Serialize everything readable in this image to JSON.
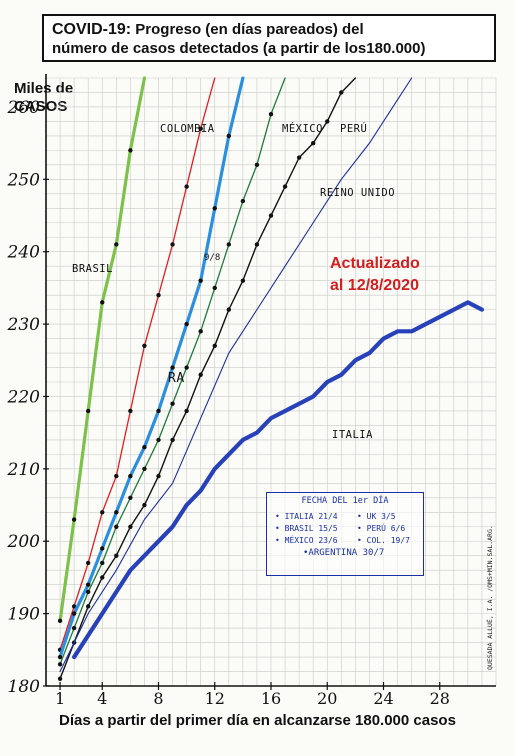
{
  "header": {
    "title_lead": "COVID-19:",
    "title_rest": " Progreso (en días pareados) del",
    "title_line2": "número de casos detectados (a partir de los180.000)"
  },
  "y_axis_label": [
    "Miles de",
    "CASOS"
  ],
  "x_axis_label": "Días a partir del primer día en alcanzarse 180.000 casos",
  "updated_note": [
    "Actualizado",
    "al 12/8/2020"
  ],
  "annotation_9_8": "9/8",
  "legend": {
    "header": "FECHA DEL 1er DÍA",
    "entries": [
      "• ITALIA 21/4",
      "• UK 3/5",
      "• BRASIL 15/5",
      "• PERÚ 6/6",
      "• MÉXICO 23/6",
      "• COL. 19/7"
    ],
    "last": "•ARGENTINA 30/7"
  },
  "credit": "QUESADA ALLUÉ, I.A. /OMS+MIN.SAL.ARG.",
  "colors": {
    "brasil": "#7cc24a",
    "colombia": "#e02020",
    "argentina": "#2a8fe0",
    "mexico": "#1f7a3a",
    "peru": "#111111",
    "reino_unido": "#1b2f9e",
    "italia": "#2741b8",
    "grid": "#c9c9c9",
    "updated": "#d21f1f"
  },
  "chart_data": {
    "type": "line",
    "xlabel": "Días a partir del primer día en alcanzarse 180.000 casos",
    "ylabel": "Miles de CASOS",
    "x_ticks": [
      1,
      4,
      8,
      12,
      16,
      20,
      24,
      28
    ],
    "y_ticks": [
      180,
      190,
      200,
      210,
      220,
      230,
      240,
      250,
      260
    ],
    "xlim": [
      0,
      32
    ],
    "ylim": [
      180,
      264
    ],
    "grid": true,
    "series": [
      {
        "name": "BRASIL",
        "key": "brasil",
        "x": [
          1,
          2,
          3,
          4,
          5,
          6,
          7
        ],
        "y": [
          189,
          203,
          218,
          233,
          241,
          254,
          265
        ]
      },
      {
        "name": "COLOMBIA",
        "key": "colombia",
        "x": [
          1,
          2,
          3,
          4,
          5,
          6,
          7,
          8,
          9,
          10,
          11,
          12
        ],
        "y": [
          185,
          191,
          197,
          204,
          209,
          218,
          227,
          234,
          241,
          249,
          257,
          265
        ]
      },
      {
        "name": "RA",
        "key": "argentina",
        "x": [
          1,
          2,
          3,
          4,
          5,
          6,
          7,
          8,
          9,
          10,
          11,
          12,
          13,
          14
        ],
        "y": [
          184,
          190,
          194,
          199,
          204,
          209,
          213,
          218,
          224,
          230,
          236,
          246,
          256,
          265
        ]
      },
      {
        "name": "MÉXICO",
        "key": "mexico",
        "x": [
          1,
          2,
          3,
          4,
          5,
          6,
          7,
          8,
          9,
          10,
          11,
          12,
          13,
          14,
          15,
          16,
          17
        ],
        "y": [
          183,
          188,
          193,
          197,
          202,
          206,
          210,
          214,
          219,
          224,
          229,
          235,
          241,
          247,
          252,
          259,
          265
        ]
      },
      {
        "name": "PERÚ",
        "key": "peru",
        "x": [
          1,
          2,
          3,
          4,
          5,
          6,
          7,
          8,
          9,
          10,
          11,
          12,
          13,
          14,
          15,
          16,
          17,
          18,
          19,
          20,
          21,
          22
        ],
        "y": [
          181,
          186,
          191,
          195,
          198,
          202,
          205,
          209,
          214,
          218,
          223,
          227,
          232,
          236,
          241,
          245,
          249,
          253,
          255,
          258,
          262,
          265
        ]
      },
      {
        "name": "REINO UNIDO",
        "key": "reino_unido",
        "x": [
          1,
          3,
          5,
          7,
          9,
          11,
          13,
          15,
          17,
          19,
          21,
          23,
          25,
          26
        ],
        "y": [
          182,
          190,
          196,
          203,
          208,
          217,
          226,
          232,
          238,
          244,
          250,
          255,
          261,
          264
        ]
      },
      {
        "name": "ITALIA",
        "key": "italia",
        "x": [
          2,
          3,
          4,
          5,
          6,
          7,
          8,
          9,
          10,
          11,
          12,
          13,
          14,
          15,
          16,
          17,
          18,
          19,
          20,
          21,
          22,
          23,
          24,
          25,
          26,
          27,
          28,
          29,
          30,
          31
        ],
        "y": [
          184,
          187,
          190,
          193,
          196,
          198,
          200,
          202,
          205,
          207,
          210,
          212,
          214,
          215,
          217,
          218,
          219,
          220,
          222,
          223,
          225,
          226,
          228,
          229,
          229,
          230,
          231,
          232,
          233,
          232
        ]
      }
    ],
    "labels": [
      {
        "text": "BRASIL",
        "key": "brasil"
      },
      {
        "text": "COLOMBIA",
        "key": "colombia"
      },
      {
        "text": "RA",
        "key": "argentina"
      },
      {
        "text": "MÉXICO",
        "key": "mexico"
      },
      {
        "text": "PERÚ",
        "key": "peru"
      },
      {
        "text": "REINO UNIDO",
        "key": "reino_unido"
      },
      {
        "text": "ITALIA",
        "key": "italia"
      }
    ]
  }
}
